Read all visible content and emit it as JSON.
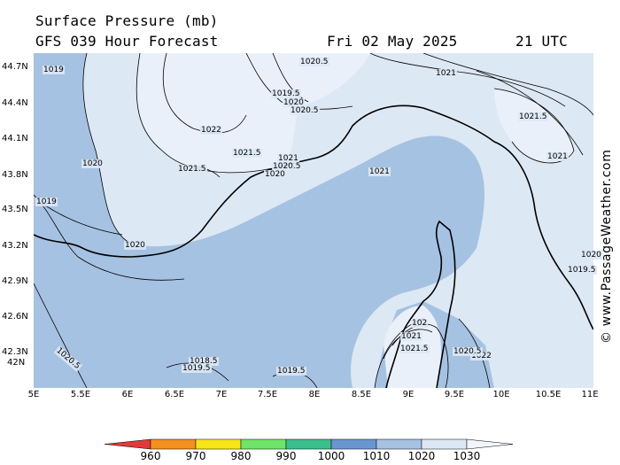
{
  "header": {
    "title": "Surface Pressure (mb)",
    "subtitle": "GFS 039 Hour Forecast",
    "date": "Fri 02 May 2025",
    "hour": "21 UTC"
  },
  "axes": {
    "lat_ticks": [
      "44.7N",
      "44.4N",
      "44.1N",
      "43.8N",
      "43.5N",
      "43.2N",
      "42.9N",
      "42.6N",
      "42.3N",
      "42N"
    ],
    "lon_ticks": [
      "5E",
      "5.5E",
      "6E",
      "6.5E",
      "7E",
      "7.5E",
      "8E",
      "8.5E",
      "9E",
      "9.5E",
      "10E",
      "10.5E",
      "11E"
    ]
  },
  "contour_labels": [
    "1019",
    "1020.5",
    "1019.5",
    "1020",
    "1020.5",
    "1021",
    "1021.5",
    "1022",
    "1021.5",
    "1021",
    "1020.5",
    "1020",
    "1020",
    "1021.5",
    "1021",
    "1021",
    "1020",
    "1019",
    "1020",
    "102",
    "1021",
    "1021.5",
    "1022",
    "1020.5",
    "1020.5",
    "1018.5",
    "1019.5",
    "1019.5",
    "1019.5"
  ],
  "copyright": "© www.PassageWeather.com",
  "legend": {
    "values": [
      "960",
      "970",
      "980",
      "990",
      "1000",
      "1010",
      "1020",
      "1030"
    ],
    "colors": [
      "#e23a3a",
      "#f4901e",
      "#f7e51a",
      "#6fe36a",
      "#3bbf8c",
      "#6a96cf",
      "#a6c2e2",
      "#dde8f5"
    ]
  },
  "colors": {
    "sea": "#a6c2e2",
    "high": "#dde8f5",
    "highest": "#eaf0fa",
    "coast": "#000000"
  }
}
